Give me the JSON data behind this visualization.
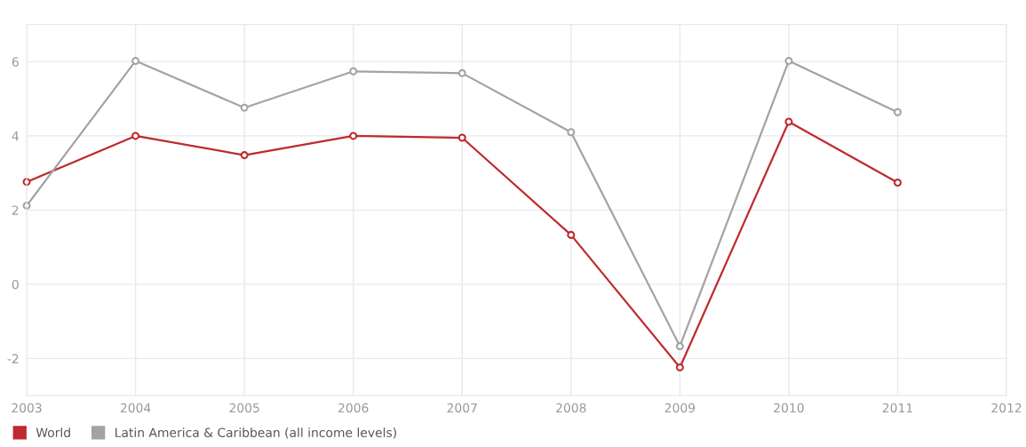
{
  "chart_data": {
    "type": "line",
    "x": [
      2003,
      2004,
      2005,
      2006,
      2007,
      2008,
      2009,
      2010,
      2011
    ],
    "series": [
      {
        "name": "World",
        "color": "#bf2a2e",
        "values": [
          2.76,
          4.0,
          3.48,
          4.0,
          3.95,
          1.33,
          -2.24,
          4.38,
          2.74
        ]
      },
      {
        "name": "Latin America & Caribbean (all income levels)",
        "color": "#a3a3a3",
        "values": [
          2.12,
          6.02,
          4.76,
          5.74,
          5.69,
          4.1,
          -1.67,
          6.02,
          4.64
        ]
      }
    ],
    "xlim": [
      2003,
      2012
    ],
    "xticks": [
      2003,
      2004,
      2005,
      2006,
      2007,
      2008,
      2009,
      2010,
      2011,
      2012
    ],
    "ylim": [
      -3,
      7
    ],
    "yticks": [
      -2,
      0,
      2,
      4,
      6
    ],
    "grid": true,
    "legend": "bottom left",
    "marker": "circle",
    "line_style": "solid"
  }
}
